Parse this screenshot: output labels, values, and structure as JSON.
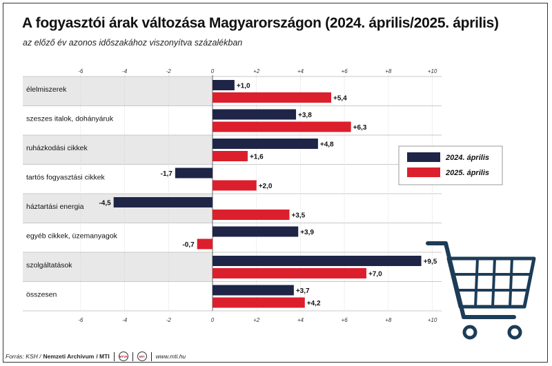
{
  "title": "A fogyasztói árak változása Magyarországon (2024. április/2025. április)",
  "subtitle": "az előző év azonos időszakához viszonyítva százalékban",
  "footer": {
    "source_label": "Forrás: KSH /",
    "archive": "Nemzeti Archívum",
    "mti": "/ MTI",
    "logo1": "MTVA",
    "logo2": "MTI",
    "url": "www.mti.hu"
  },
  "colors": {
    "series1": "#1f2547",
    "series2": "#dc1f2c",
    "band": "#e8e8e9",
    "cart": "#1c3c57"
  },
  "icon": "shopping-cart-icon",
  "chart_data": {
    "type": "bar",
    "orientation": "horizontal",
    "title": "A fogyasztói árak változása Magyarországon (2024. április/2025. április)",
    "subtitle": "az előző év azonos időszakához viszonyítva százalékban",
    "categories": [
      "élelmiszerek",
      "szeszes italok, dohányáruk",
      "ruházkodási cikkek",
      "tartós fogyasztási cikkek",
      "háztartási energia",
      "egyéb cikkek, üzemanyagok",
      "szolgáltatások",
      "összesen"
    ],
    "series": [
      {
        "name": "2024. április",
        "values": [
          1.0,
          3.8,
          4.8,
          -1.7,
          -4.5,
          3.9,
          9.5,
          3.7
        ]
      },
      {
        "name": "2025. április",
        "values": [
          5.4,
          6.3,
          1.6,
          2.0,
          3.5,
          -0.7,
          7.0,
          4.2
        ]
      }
    ],
    "labels": [
      [
        "+1,0",
        "+3,8",
        "+4,8",
        "-1,7",
        "-4,5",
        "+3,9",
        "+9,5",
        "+3,7"
      ],
      [
        "+5,4",
        "+6,3",
        "+1,6",
        "+2,0",
        "+3,5",
        "-0,7",
        "+7,0",
        "+4,2"
      ]
    ],
    "xlim": [
      -6,
      10
    ],
    "ticks": [
      -6,
      -4,
      -2,
      0,
      2,
      4,
      6,
      8,
      10
    ],
    "tick_labels": [
      "-6",
      "-4",
      "-2",
      "0",
      "+2",
      "+4",
      "+6",
      "+8",
      "+10"
    ],
    "grid": true,
    "legend": "right"
  }
}
